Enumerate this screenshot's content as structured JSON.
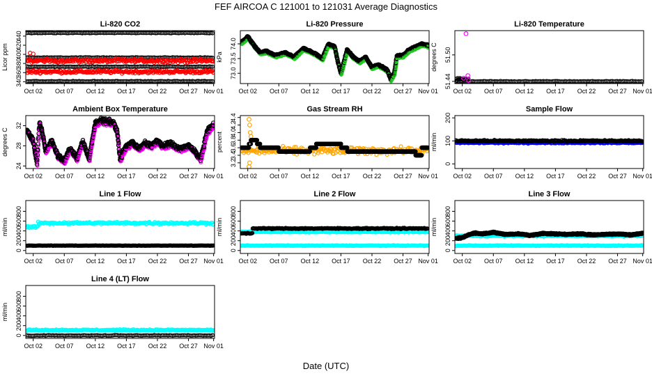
{
  "page_title": "FEF   AIRCOA C   121001 to 121031   Average Diagnostics",
  "x_caption": "Date (UTC)",
  "colors": {
    "black": "#000000",
    "red": "#ff0000",
    "green": "#22cc22",
    "magenta": "#ff00ff",
    "orange": "#ffa500",
    "blue": "#0000ff",
    "cyan": "#00ffff"
  },
  "x_ticks": [
    "Oct 02",
    "Oct 07",
    "Oct 12",
    "Oct 17",
    "Oct 22",
    "Oct 27",
    "Nov 01"
  ],
  "chart_data": [
    {
      "type": "scatter",
      "title": "Li-820 CO2",
      "ylabel": "Licor ppm",
      "ylim": [
        336,
        452
      ],
      "yticks": [
        "340",
        "360",
        "380",
        "400",
        "420",
        "440"
      ],
      "ytick_values": [
        340,
        360,
        380,
        400,
        420,
        440
      ],
      "xlim": [
        1,
        31
      ],
      "series": [
        {
          "name": "reference high",
          "color": "black",
          "pattern": "flat",
          "x_range": [
            1,
            31
          ],
          "level": 447
        },
        {
          "name": "reference mid",
          "color": "black",
          "pattern": "flat",
          "x_range": [
            1,
            31
          ],
          "level": 393
        },
        {
          "name": "sample high",
          "color": "red",
          "pattern": "noise",
          "x_range": [
            1,
            31
          ],
          "level": 386,
          "spread": 6,
          "spikes": [
            [
              1.5,
              403
            ],
            [
              2.0,
              401
            ]
          ]
        },
        {
          "name": "sample mid",
          "color": "black",
          "pattern": "flat",
          "x_range": [
            1,
            31
          ],
          "level": 373
        },
        {
          "name": "sample low",
          "color": "red",
          "pattern": "noise",
          "x_range": [
            1,
            31
          ],
          "level": 362,
          "spread": 5
        },
        {
          "name": "reference low",
          "color": "black",
          "pattern": "flat",
          "x_range": [
            1,
            31
          ],
          "level": 341
        }
      ]
    },
    {
      "type": "scatter",
      "title": "Li-820 Pressure",
      "ylabel": "kPa",
      "ylim": [
        72.65,
        74.45
      ],
      "yticks": [
        "73.0",
        "73.5",
        "74.0"
      ],
      "ytick_values": [
        73.0,
        73.5,
        74.0
      ],
      "xlim": [
        1,
        31
      ],
      "series": [
        {
          "name": "pressure",
          "color": "black",
          "pattern": "curve",
          "shadow": "green",
          "jitter": 0.04,
          "x": [
            1.0,
            2.0,
            3.0,
            4.0,
            5.0,
            6.5,
            8.0,
            9.5,
            11.0,
            12.0,
            13.0,
            14.0,
            15.0,
            16.0,
            16.5,
            17.0,
            18.0,
            19.0,
            20.0,
            21.0,
            22.0,
            23.0,
            24.5,
            25.0,
            25.6,
            26.0,
            27.0,
            28.0,
            29.0,
            30.0,
            31.0
          ],
          "y": [
            74.05,
            74.25,
            73.95,
            73.7,
            73.75,
            73.6,
            73.7,
            73.55,
            73.85,
            73.75,
            73.65,
            73.5,
            74.0,
            73.9,
            73.4,
            73.0,
            73.8,
            73.55,
            73.4,
            73.55,
            73.2,
            73.3,
            73.1,
            72.8,
            73.0,
            73.6,
            73.6,
            73.8,
            73.9,
            74.0,
            73.95
          ]
        }
      ]
    },
    {
      "type": "scatter",
      "title": "Li-820 Temperature",
      "ylabel": "degrees C",
      "ylim": [
        51.435,
        51.555
      ],
      "yticks": [
        "51.44",
        "51.50"
      ],
      "ytick_values": [
        51.44,
        51.5
      ],
      "xlim": [
        1,
        31
      ],
      "series": [
        {
          "name": "temperature",
          "color": "black",
          "pattern": "flat",
          "x_range": [
            1,
            31
          ],
          "level": 51.44
        },
        {
          "name": "temperature early",
          "color": "black",
          "pattern": "noise",
          "x_range": [
            1,
            3
          ],
          "level": 51.445,
          "spread": 0.004
        },
        {
          "name": "outliers",
          "color": "magenta",
          "pattern": "points",
          "x": [
            2.6,
            2.9,
            2.2,
            3.0
          ],
          "y": [
            51.548,
            51.453,
            51.447,
            51.442
          ]
        }
      ]
    },
    {
      "type": "scatter",
      "title": "Ambient Box Temperature",
      "ylabel": "degrees C",
      "ylim": [
        23.5,
        34.0
      ],
      "yticks": [
        "24",
        "28",
        "32"
      ],
      "ytick_values": [
        24,
        28,
        32
      ],
      "xlim": [
        1,
        31
      ],
      "series": [
        {
          "name": "box temperature",
          "color": "black",
          "pattern": "curve",
          "shadow": "magenta",
          "jitter": 0.7,
          "x": [
            1.0,
            1.5,
            2.0,
            2.6,
            3.0,
            3.5,
            4.0,
            5.0,
            6.0,
            7.0,
            8.0,
            9.0,
            10.0,
            11.0,
            12.0,
            13.0,
            14.0,
            15.0,
            15.5,
            16.0,
            17.0,
            18.0,
            19.0,
            20.0,
            21.0,
            22.0,
            23.0,
            24.0,
            25.0,
            26.0,
            27.0,
            28.0,
            28.5,
            29.0,
            30.0,
            31.0
          ],
          "y": [
            31.0,
            30.0,
            29.0,
            24.5,
            32.5,
            30.5,
            27.0,
            29.0,
            26.0,
            25.0,
            27.5,
            25.5,
            29.0,
            25.5,
            32.5,
            33.0,
            32.8,
            32.5,
            31.0,
            25.5,
            28.0,
            28.5,
            27.5,
            28.5,
            28.0,
            29.0,
            28.0,
            28.5,
            27.8,
            27.5,
            28.0,
            27.0,
            26.0,
            25.5,
            31.0,
            32.0
          ]
        }
      ]
    },
    {
      "type": "scatter",
      "title": "Gas Stream RH",
      "ylabel": "percent",
      "ylim": [
        3.05,
        4.45
      ],
      "yticks": [
        "3.2",
        "3.4",
        "3.6",
        "3.8",
        "4.0",
        "4.2",
        "4.4"
      ],
      "ytick_values": [
        3.2,
        3.4,
        3.6,
        3.8,
        4.0,
        4.2,
        4.4
      ],
      "xlim": [
        1,
        31
      ],
      "series": [
        {
          "name": "rh scatter",
          "color": "orange",
          "pattern": "noise",
          "x_range": [
            1,
            31
          ],
          "level": 3.52,
          "spread": 0.14
        },
        {
          "name": "rh early spike",
          "color": "orange",
          "pattern": "points",
          "x": [
            2.2,
            2.3,
            2.4,
            2.5,
            2.3,
            2.2
          ],
          "y": [
            4.35,
            4.2,
            4.0,
            3.9,
            3.2,
            3.1
          ]
        },
        {
          "name": "rh",
          "color": "black",
          "pattern": "steps",
          "x": [
            1.0,
            2.2,
            2.5,
            3.5,
            4.0,
            5.0,
            7.0,
            8.0,
            12.0,
            13.0,
            16.0,
            17.0,
            18.0,
            19.0,
            22.0,
            25.0,
            26.0,
            29.0,
            30.0,
            31.0
          ],
          "y": [
            3.6,
            3.7,
            3.8,
            3.7,
            3.6,
            3.6,
            3.5,
            3.5,
            3.6,
            3.7,
            3.7,
            3.6,
            3.5,
            3.5,
            3.5,
            3.5,
            3.5,
            3.4,
            3.6,
            3.6
          ]
        }
      ]
    },
    {
      "type": "scatter",
      "title": "Sample Flow",
      "ylabel": "ml/min",
      "ylim": [
        -20,
        210
      ],
      "yticks": [
        "0",
        "100",
        "200"
      ],
      "ytick_values": [
        0,
        100,
        200
      ],
      "xlim": [
        1,
        31
      ],
      "series": [
        {
          "name": "sample flow lower",
          "color": "blue",
          "pattern": "noise",
          "x_range": [
            1,
            31
          ],
          "level": 92,
          "spread": 4
        },
        {
          "name": "sample flow",
          "color": "black",
          "pattern": "noise",
          "x_range": [
            1,
            31
          ],
          "level": 100,
          "spread": 5
        }
      ]
    },
    {
      "type": "scatter",
      "title": "Line 1 Flow",
      "ylabel": "ml/min",
      "ylim": [
        -60,
        1020
      ],
      "yticks": [
        "0",
        "200",
        "400",
        "600",
        "800"
      ],
      "ytick_values": [
        0,
        200,
        400,
        600,
        800
      ],
      "xlim": [
        1,
        31
      ],
      "series": [
        {
          "name": "line 1 early",
          "color": "cyan",
          "pattern": "noise",
          "x_range": [
            1,
            2.8
          ],
          "level": 480,
          "spread": 35
        },
        {
          "name": "line 1 cyan",
          "color": "cyan",
          "pattern": "noise",
          "x_range": [
            2.8,
            31
          ],
          "level": 560,
          "spread": 35
        },
        {
          "name": "line 1 black",
          "color": "black",
          "pattern": "noise",
          "x_range": [
            1,
            31
          ],
          "level": 100,
          "spread": 5
        }
      ]
    },
    {
      "type": "scatter",
      "title": "Line 2 Flow",
      "ylabel": "ml/min",
      "ylim": [
        -60,
        1020
      ],
      "yticks": [
        "0",
        "200",
        "400",
        "600",
        "800"
      ],
      "ytick_values": [
        0,
        200,
        400,
        600,
        800
      ],
      "xlim": [
        1,
        31
      ],
      "series": [
        {
          "name": "line 2 upper",
          "color": "cyan",
          "pattern": "noise",
          "x_range": [
            1,
            31
          ],
          "level": 380,
          "spread": 15
        },
        {
          "name": "line 2 black early",
          "color": "black",
          "pattern": "noise",
          "x_range": [
            1,
            2.8
          ],
          "level": 350,
          "spread": 10
        },
        {
          "name": "line 2 black",
          "color": "black",
          "pattern": "noise",
          "x_range": [
            2.8,
            31
          ],
          "level": 450,
          "spread": 15
        },
        {
          "name": "line 2 lower",
          "color": "cyan",
          "pattern": "noise",
          "x_range": [
            1,
            31
          ],
          "level": 100,
          "spread": 8
        }
      ]
    },
    {
      "type": "scatter",
      "title": "Line 3 Flow",
      "ylabel": "ml/min",
      "ylim": [
        -60,
        1020
      ],
      "yticks": [
        "0",
        "200",
        "400",
        "600",
        "800"
      ],
      "ytick_values": [
        0,
        200,
        400,
        600,
        800
      ],
      "xlim": [
        1,
        31
      ],
      "series": [
        {
          "name": "line 3 upper",
          "color": "cyan",
          "pattern": "noise",
          "x_range": [
            1,
            31
          ],
          "level": 300,
          "spread": 20
        },
        {
          "name": "line 3 black",
          "color": "black",
          "pattern": "curve",
          "jitter": 18,
          "x": [
            1.0,
            2.0,
            3.0,
            4.0,
            5.0,
            7.0,
            9.0,
            11.0,
            13.0,
            15.0,
            17.0,
            19.0,
            21.0,
            23.0,
            25.0,
            27.0,
            29.0,
            31.0
          ],
          "y": [
            250,
            260,
            320,
            360,
            340,
            370,
            330,
            340,
            310,
            350,
            340,
            330,
            340,
            320,
            330,
            340,
            320,
            350
          ]
        },
        {
          "name": "line 3 lower",
          "color": "cyan",
          "pattern": "noise",
          "x_range": [
            1,
            31
          ],
          "level": 100,
          "spread": 10
        }
      ]
    },
    {
      "type": "scatter",
      "title": "Line 4 (LT) Flow",
      "ylabel": "ml/min",
      "ylim": [
        -60,
        1020
      ],
      "yticks": [
        "0",
        "200",
        "400",
        "600",
        "800"
      ],
      "ytick_values": [
        0,
        200,
        400,
        600,
        800
      ],
      "xlim": [
        1,
        31
      ],
      "series": [
        {
          "name": "line 4 cyan",
          "color": "cyan",
          "pattern": "noise",
          "x_range": [
            1,
            31
          ],
          "level": 110,
          "spread": 20
        },
        {
          "name": "line 4 black",
          "color": "black",
          "pattern": "flat",
          "x_range": [
            1,
            31
          ],
          "level": 0
        }
      ]
    }
  ]
}
